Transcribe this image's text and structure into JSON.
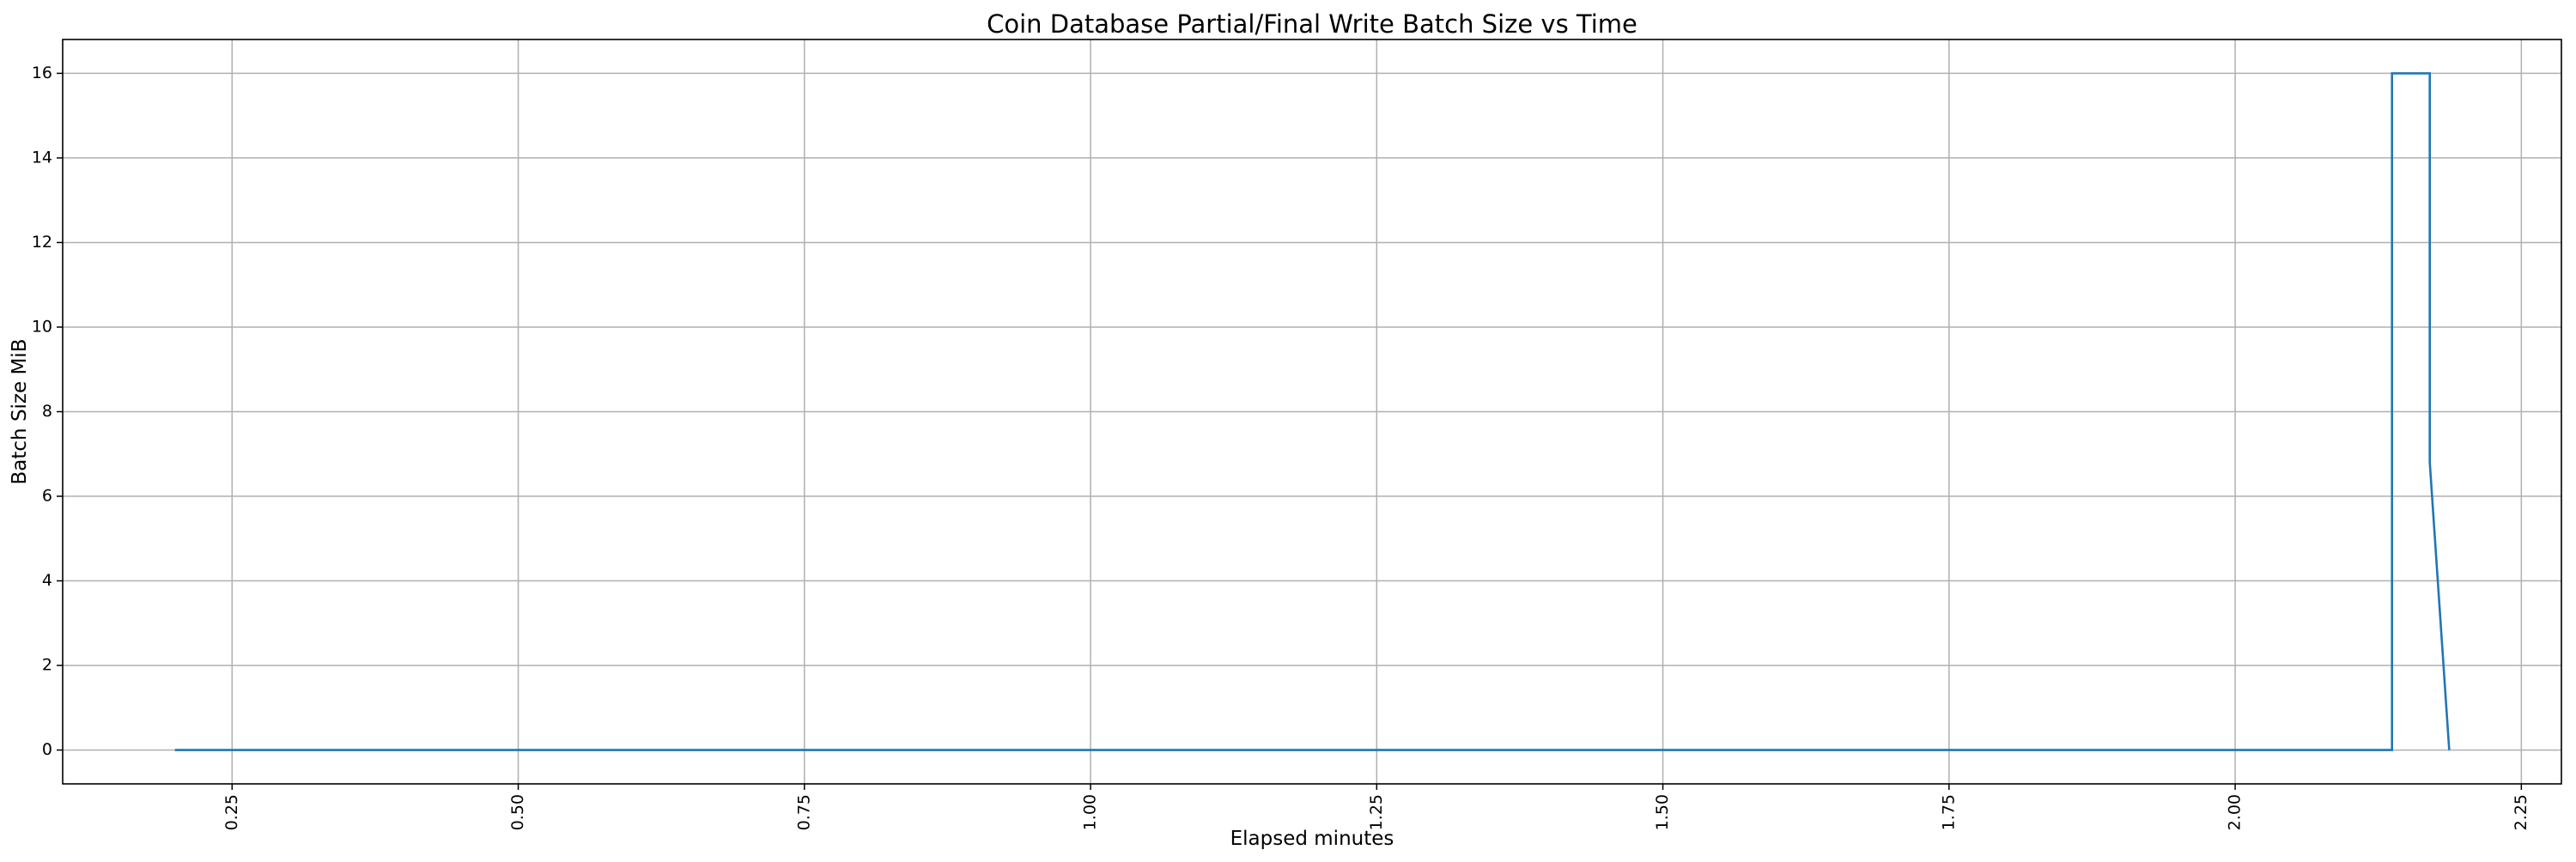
{
  "chart_data": {
    "type": "line",
    "title": "Coin Database Partial/Final Write Batch Size vs Time",
    "xlabel": "Elapsed minutes",
    "ylabel": "Batch Size MiB",
    "xlim": [
      0.102,
      2.285
    ],
    "ylim": [
      -0.8,
      16.8
    ],
    "xticks": [
      0.25,
      0.5,
      0.75,
      1.0,
      1.25,
      1.5,
      1.75,
      2.0,
      2.25
    ],
    "xtick_labels": [
      "0.25",
      "0.50",
      "0.75",
      "1.00",
      "1.25",
      "1.50",
      "1.75",
      "2.00",
      "2.25"
    ],
    "yticks": [
      0,
      2,
      4,
      6,
      8,
      10,
      12,
      14,
      16
    ],
    "ytick_labels": [
      "0",
      "2",
      "4",
      "6",
      "8",
      "10",
      "12",
      "14",
      "16"
    ],
    "xtick_rotation": 90,
    "grid": true,
    "legend": "none",
    "series": [
      {
        "color": "#1f77b4",
        "x": [
          0.2,
          2.137,
          2.137,
          2.17,
          2.17,
          2.187
        ],
        "y": [
          0,
          0,
          16,
          16,
          6.8,
          0
        ]
      }
    ]
  }
}
